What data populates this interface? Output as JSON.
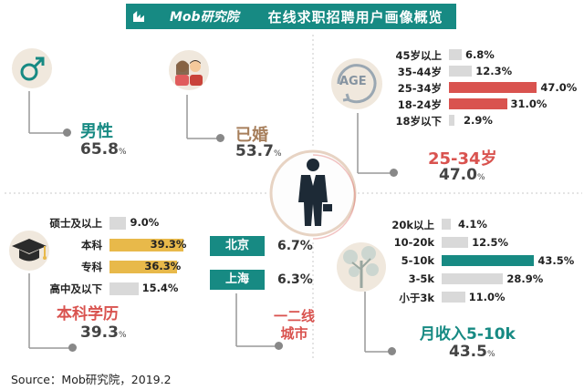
{
  "header": {
    "brand": "Mob研究院",
    "title": "在线求职招聘用户画像概览"
  },
  "gender": {
    "label": "男性",
    "value": "65.8",
    "unit": "%"
  },
  "marriage": {
    "label": "已婚",
    "value": "53.7",
    "unit": "%"
  },
  "age": {
    "badge": "AGE",
    "label": "25-34岁",
    "value": "47.0",
    "unit": "%",
    "rows": [
      {
        "label": "45岁以上",
        "value": 6.8,
        "text": "6.8%",
        "color": "#d9d9d9"
      },
      {
        "label": "35-44岁",
        "value": 12.3,
        "text": "12.3%",
        "color": "#d9d9d9"
      },
      {
        "label": "25-34岁",
        "value": 47.0,
        "text": "47.0%",
        "color": "#d9534f"
      },
      {
        "label": "18-24岁",
        "value": 31.0,
        "text": "31.0%",
        "color": "#d9534f"
      },
      {
        "label": "18岁以下",
        "value": 2.9,
        "text": "2.9%",
        "color": "#d9d9d9"
      }
    ]
  },
  "education": {
    "label": "本科学历",
    "value": "39.3",
    "unit": "%",
    "rows": [
      {
        "label": "硕士及以上",
        "value": 9.0,
        "text": "9.0%",
        "color": "#d9d9d9"
      },
      {
        "label": "本科",
        "value": 39.3,
        "text": "39.3%",
        "color": "#e8b94a"
      },
      {
        "label": "专科",
        "value": 36.3,
        "text": "36.3%",
        "color": "#e8b94a"
      },
      {
        "label": "高中及以下",
        "value": 15.4,
        "text": "15.4%",
        "color": "#d9d9d9"
      }
    ]
  },
  "city": {
    "label_line1": "一二线",
    "label_line2": "城市",
    "items": [
      {
        "name": "北京",
        "value": "6.7%"
      },
      {
        "name": "上海",
        "value": "6.3%"
      }
    ]
  },
  "income": {
    "label": "月收入5-10k",
    "value": "43.5",
    "unit": "%",
    "rows": [
      {
        "label": "20k以上",
        "value": 4.1,
        "text": "4.1%",
        "color": "#d9d9d9"
      },
      {
        "label": "10-20k",
        "value": 12.5,
        "text": "12.5%",
        "color": "#d9d9d9"
      },
      {
        "label": "5-10k",
        "value": 43.5,
        "text": "43.5%",
        "color": "#178a83"
      },
      {
        "label": "3-5k",
        "value": 28.9,
        "text": "28.9%",
        "color": "#d9d9d9"
      },
      {
        "label": "小于3k",
        "value": 11.0,
        "text": "11.0%",
        "color": "#d9d9d9"
      }
    ]
  },
  "source": "Source：Mob研究院，2019.2",
  "chart_data": [
    {
      "type": "bar",
      "categories": [
        "45岁以上",
        "35-44岁",
        "25-34岁",
        "18-24岁",
        "18岁以下"
      ],
      "values": [
        6.8,
        12.3,
        47.0,
        31.0,
        2.9
      ]
    },
    {
      "type": "bar",
      "categories": [
        "硕士及以上",
        "本科",
        "专科",
        "高中及以下"
      ],
      "values": [
        9.0,
        39.3,
        36.3,
        15.4
      ]
    },
    {
      "type": "bar",
      "categories": [
        "20k以上",
        "10-20k",
        "5-10k",
        "3-5k",
        "小于3k"
      ],
      "values": [
        4.1,
        12.5,
        43.5,
        28.9,
        11.0
      ]
    }
  ]
}
